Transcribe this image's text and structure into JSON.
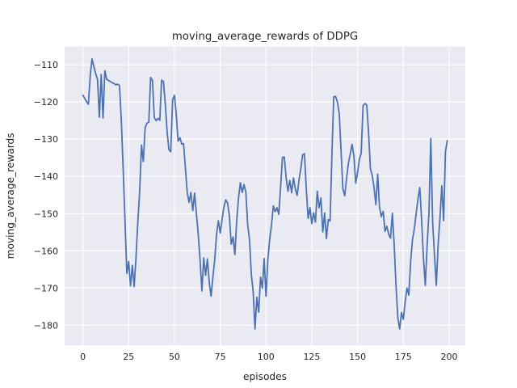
{
  "figure": {
    "title": "moving_average_rewards of DDPG",
    "xlabel": "episodes",
    "ylabel": "moving_average_rewards"
  },
  "chart_data": {
    "type": "line",
    "title": "moving_average_rewards of DDPG",
    "xlabel": "episodes",
    "ylabel": "moving_average_rewards",
    "series_name": "moving_average_rewards",
    "x_start": 0,
    "x_step": 1,
    "values": [
      -118.2,
      -119.0,
      -119.9,
      -120.6,
      -113.0,
      -108.4,
      -110.5,
      -112.4,
      -113.9,
      -124.1,
      -112.6,
      -124.3,
      -111.6,
      -113.9,
      -114.2,
      -114.5,
      -114.8,
      -115.0,
      -115.4,
      -115.2,
      -115.6,
      -125.0,
      -138.0,
      -152.0,
      -166.1,
      -162.9,
      -169.4,
      -163.9,
      -169.6,
      -161.9,
      -152.3,
      -144.2,
      -131.6,
      -136.0,
      -126.9,
      -125.7,
      -125.4,
      -113.4,
      -114.2,
      -124.2,
      -125.0,
      -124.4,
      -124.9,
      -114.1,
      -114.5,
      -120.5,
      -128.0,
      -132.8,
      -133.4,
      -119.4,
      -118.2,
      -123.4,
      -130.5,
      -129.6,
      -131.3,
      -131.2,
      -137.9,
      -144.4,
      -147.0,
      -144.3,
      -149.2,
      -144.5,
      -150.0,
      -155.6,
      -162.5,
      -170.8,
      -161.9,
      -166.6,
      -162.2,
      -168.5,
      -172.2,
      -167.1,
      -162.4,
      -155.5,
      -151.9,
      -155.2,
      -151.6,
      -148.3,
      -146.3,
      -147.1,
      -150.5,
      -158.2,
      -156.3,
      -161.0,
      -151.9,
      -145.8,
      -141.7,
      -144.3,
      -142.2,
      -144.2,
      -153.0,
      -157.0,
      -166.4,
      -171.0,
      -181.0,
      -172.5,
      -176.5,
      -167.1,
      -170.0,
      -162.1,
      -172.2,
      -162.4,
      -157.0,
      -153.0,
      -147.9,
      -149.5,
      -148.4,
      -150.2,
      -142.6,
      -134.9,
      -134.8,
      -140.4,
      -144.0,
      -141.1,
      -144.4,
      -140.4,
      -143.3,
      -145.1,
      -141.1,
      -137.9,
      -134.2,
      -133.9,
      -143.3,
      -151.3,
      -148.4,
      -152.7,
      -149.8,
      -152.3,
      -144.0,
      -148.4,
      -145.8,
      -154.9,
      -149.8,
      -156.7,
      -151.6,
      -152.0,
      -134.0,
      -118.6,
      -118.5,
      -120.0,
      -123.1,
      -133.3,
      -143.4,
      -145.2,
      -140.5,
      -136.5,
      -134.0,
      -131.4,
      -134.5,
      -141.8,
      -139.0,
      -135.4,
      -133.7,
      -121.0,
      -120.4,
      -120.8,
      -128.0,
      -137.9,
      -139.7,
      -143.0,
      -147.6,
      -139.4,
      -148.3,
      -150.8,
      -149.4,
      -154.8,
      -153.4,
      -155.5,
      -156.6,
      -149.9,
      -158.4,
      -169.3,
      -178.0,
      -181.0,
      -176.6,
      -178.4,
      -173.7,
      -170.0,
      -171.9,
      -162.8,
      -157.0,
      -154.1,
      -150.0,
      -146.0,
      -143.0,
      -152.0,
      -162.0,
      -169.3,
      -158.4,
      -149.7,
      -129.8,
      -152.3,
      -161.0,
      -169.3,
      -158.4,
      -151.2,
      -142.5,
      -151.9,
      -133.3,
      -130.4
    ],
    "xlim": [
      -9.97,
      208.84
    ],
    "ylim": [
      -185.4,
      -105.1
    ],
    "x_ticks": [
      0,
      25,
      50,
      75,
      100,
      125,
      150,
      175,
      200
    ],
    "y_ticks": [
      -110,
      -120,
      -130,
      -140,
      -150,
      -160,
      -170,
      -180
    ],
    "grid": true,
    "legend": null,
    "colors": {
      "line": "#4C72B0",
      "plot_background": "#EAEAF2",
      "grid": "#FFFFFF",
      "figure_background": "#FFFFFF",
      "text": "#262626"
    }
  }
}
